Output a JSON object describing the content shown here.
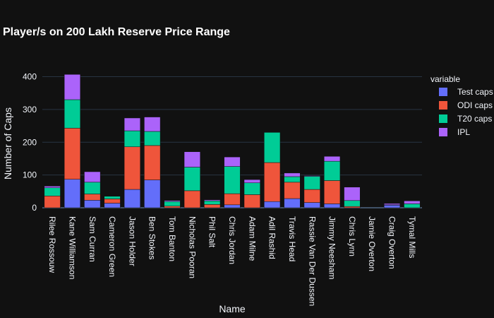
{
  "chart_data": {
    "type": "bar",
    "stacked": true,
    "title": "Player/s on 200 Lakh Reserve Price Range",
    "xlabel": "Name",
    "ylabel": "Number of Caps",
    "ylim": [
      0,
      440
    ],
    "yticks": [
      0,
      100,
      200,
      300,
      400
    ],
    "grid": true,
    "legend": {
      "title": "variable",
      "position": "right"
    },
    "categories": [
      "Rilee Rossouw",
      "Kane Williamson",
      "Sam Curran",
      "Cameron Green",
      "Jason Holder",
      "Ben Stokes",
      "Tom Banton",
      "Nicholas Pooran",
      "Phil Salt",
      "Chris Jordan",
      "Adam Milne",
      "Adil Rashid",
      "Travis Head",
      "Rassie Van Der Dussen",
      "Jimmy Neesham",
      "Chris Lynn",
      "Jamie Overton",
      "Craig Overton",
      "Tymal Mills"
    ],
    "series": [
      {
        "name": "Test caps",
        "color": "#636efa",
        "values": [
          0,
          87,
          23,
          14,
          56,
          85,
          0,
          0,
          0,
          9,
          0,
          19,
          28,
          16,
          12,
          0,
          0,
          8,
          0
        ]
      },
      {
        "name": "ODI caps",
        "color": "#ef553b",
        "values": [
          36,
          156,
          19,
          13,
          130,
          105,
          5,
          52,
          10,
          34,
          40,
          119,
          50,
          40,
          71,
          4,
          0,
          1,
          0
        ]
      },
      {
        "name": "T20 caps",
        "color": "#00cc96",
        "values": [
          25,
          87,
          36,
          8,
          49,
          43,
          14,
          72,
          11,
          83,
          36,
          92,
          17,
          40,
          59,
          18,
          0,
          0,
          12
        ]
      },
      {
        "name": "IPL",
        "color": "#ab63fa",
        "values": [
          5,
          77,
          32,
          0,
          39,
          44,
          3,
          47,
          3,
          29,
          10,
          0,
          11,
          2,
          15,
          41,
          0,
          4,
          9
        ]
      }
    ]
  }
}
